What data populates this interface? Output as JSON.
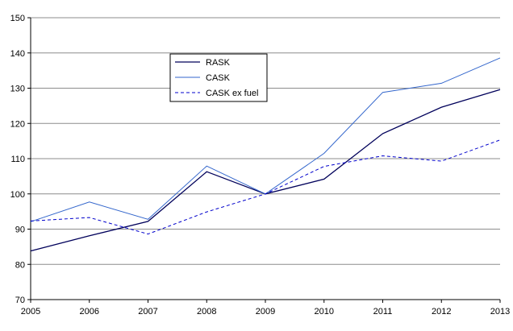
{
  "chart_data": {
    "type": "line",
    "title": "",
    "xlabel": "",
    "ylabel": "",
    "x": [
      2005,
      2006,
      2007,
      2008,
      2009,
      2010,
      2011,
      2012,
      2013
    ],
    "ylim": [
      70,
      150
    ],
    "yticks": [
      70,
      80,
      90,
      100,
      110,
      120,
      130,
      140,
      150
    ],
    "grid": true,
    "legend_position": "top-left-center",
    "series": [
      {
        "name": "RASK",
        "color": "#00005a",
        "style": "solid",
        "values": [
          83.8,
          88.1,
          92.2,
          106.3,
          100.0,
          104.2,
          117.1,
          124.6,
          129.6
        ]
      },
      {
        "name": "CASK",
        "color": "#3366cc",
        "style": "solid",
        "values": [
          92.1,
          97.7,
          92.8,
          107.9,
          100.0,
          111.5,
          128.8,
          131.4,
          138.6
        ]
      },
      {
        "name": "CASK ex fuel",
        "color": "#0000cc",
        "style": "dashed",
        "values": [
          92.3,
          93.3,
          88.6,
          94.9,
          100.0,
          107.8,
          110.8,
          109.3,
          115.3
        ]
      }
    ]
  }
}
